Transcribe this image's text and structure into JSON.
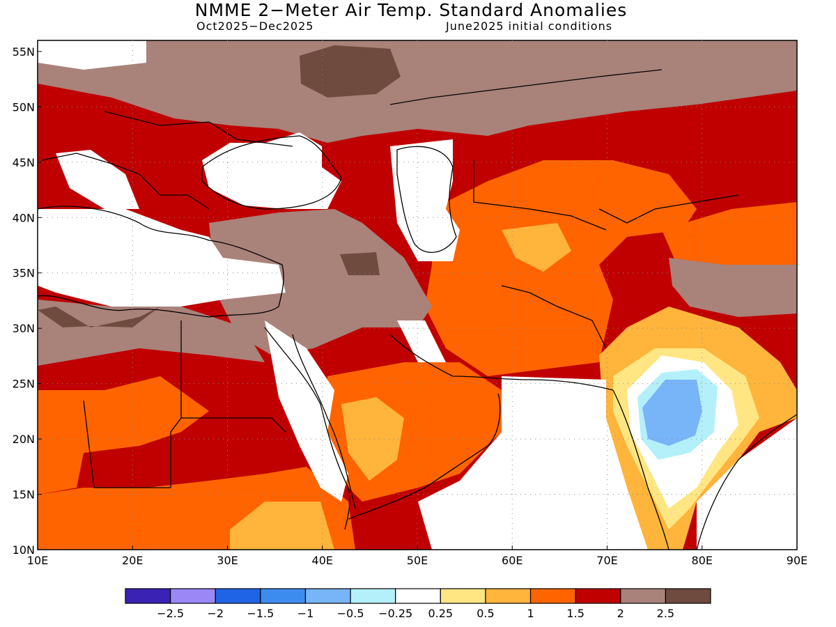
{
  "title": "NMME 2−Meter Air Temp. Standard Anomalies",
  "period": "Oct2025−Dec2025",
  "initial_conditions": "June2025 initial conditions",
  "lat_labels": [
    "55N",
    "50N",
    "45N",
    "40N",
    "35N",
    "30N",
    "25N",
    "20N",
    "15N",
    "10N"
  ],
  "lon_labels": [
    "10E",
    "20E",
    "30E",
    "40E",
    "50E",
    "60E",
    "70E",
    "80E",
    "90E"
  ],
  "colorbar": {
    "colors": [
      "#3a22b5",
      "#9b87f5",
      "#1f64e6",
      "#3c8cf0",
      "#78b4f8",
      "#b4f0fa",
      "#ffffff",
      "#ffe682",
      "#ffb43c",
      "#ff6400",
      "#c00000",
      "#a9827a",
      "#6e4a3f"
    ],
    "labels": [
      "−2.5",
      "−2",
      "−1.5",
      "−1",
      "−0.5",
      "−0.25",
      "0.25",
      "0.5",
      "1",
      "1.5",
      "2",
      "2.5"
    ]
  }
}
